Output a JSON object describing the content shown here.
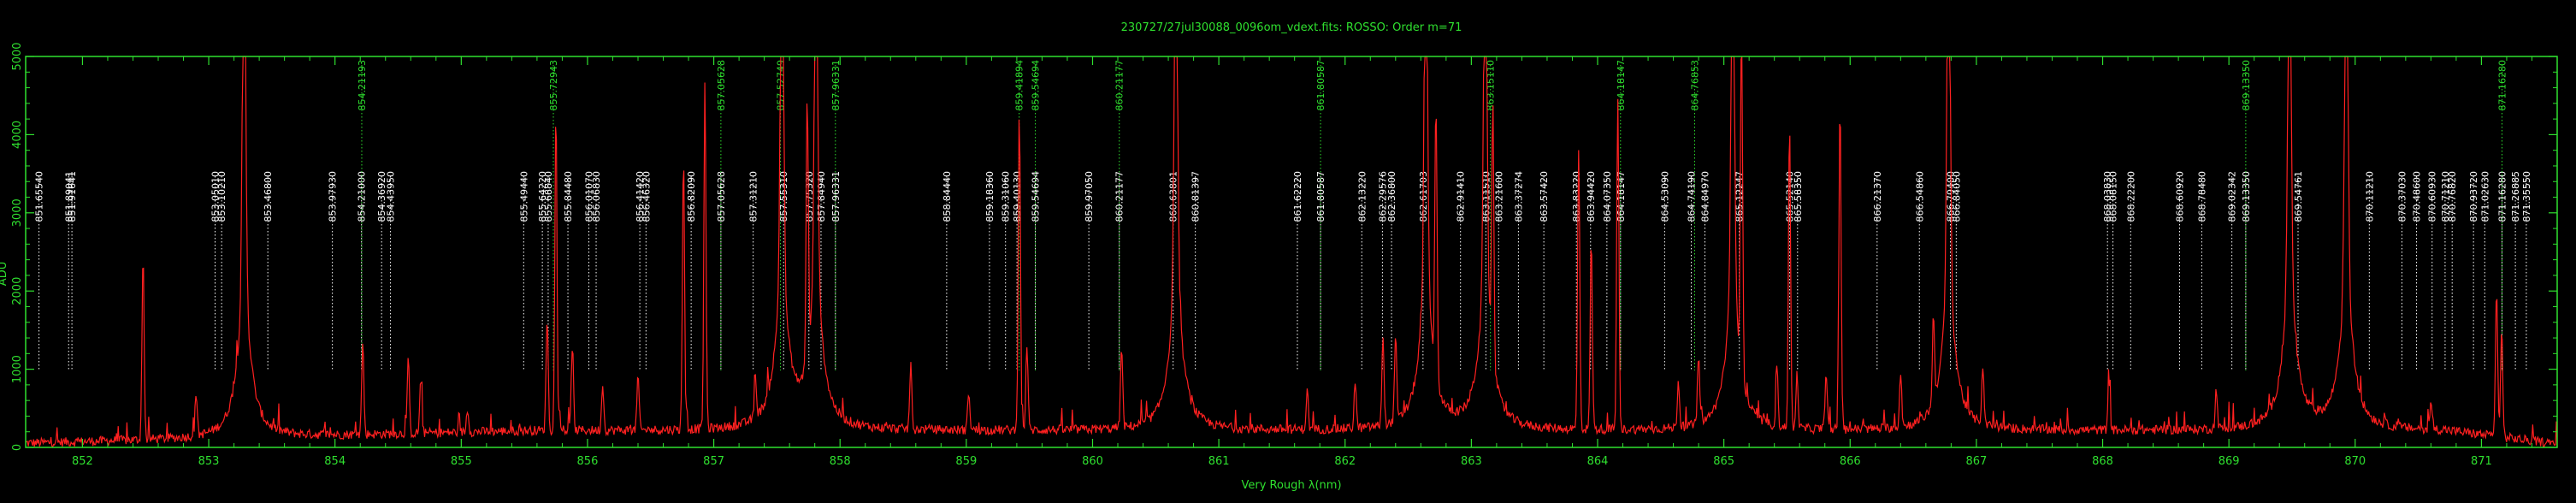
{
  "chart_data": {
    "type": "line",
    "title": "230727/27jul30088_0096om_vdext.fits: ROSSO: Order m=71",
    "xlabel": "Very Rough λ(nm)",
    "ylabel": "ADU",
    "xlim": [
      851.55,
      871.6
    ],
    "ylim": [
      0,
      5000
    ],
    "xticks": [
      852,
      853,
      854,
      855,
      856,
      857,
      858,
      859,
      860,
      861,
      862,
      863,
      864,
      865,
      866,
      867,
      868,
      869,
      870,
      871
    ],
    "yticks": [
      0,
      1000,
      2000,
      3000,
      4000,
      5000
    ],
    "grid": false,
    "colors": {
      "frame": "#2fe02f",
      "spectrum": "#ff2020",
      "line_marker_white": "#ffffff",
      "line_marker_green": "#2fe02f",
      "background": "#000000"
    },
    "continuum_level": 200,
    "peaks": [
      {
        "x": 852.48,
        "y": 2350
      },
      {
        "x": 852.9,
        "y": 550
      },
      {
        "x": 853.28,
        "y": 5000
      },
      {
        "x": 854.22,
        "y": 1200
      },
      {
        "x": 854.58,
        "y": 950
      },
      {
        "x": 854.68,
        "y": 700
      },
      {
        "x": 855.05,
        "y": 300
      },
      {
        "x": 855.68,
        "y": 1450
      },
      {
        "x": 855.75,
        "y": 3900
      },
      {
        "x": 855.88,
        "y": 1100
      },
      {
        "x": 856.12,
        "y": 600
      },
      {
        "x": 856.4,
        "y": 700
      },
      {
        "x": 856.76,
        "y": 3500
      },
      {
        "x": 856.93,
        "y": 4400
      },
      {
        "x": 857.33,
        "y": 500
      },
      {
        "x": 857.54,
        "y": 5000
      },
      {
        "x": 857.74,
        "y": 3300
      },
      {
        "x": 857.81,
        "y": 5000
      },
      {
        "x": 858.56,
        "y": 800
      },
      {
        "x": 859.02,
        "y": 500
      },
      {
        "x": 859.42,
        "y": 4150
      },
      {
        "x": 859.48,
        "y": 1100
      },
      {
        "x": 860.23,
        "y": 1050
      },
      {
        "x": 860.66,
        "y": 5000
      },
      {
        "x": 861.7,
        "y": 500
      },
      {
        "x": 862.08,
        "y": 600
      },
      {
        "x": 862.3,
        "y": 1150
      },
      {
        "x": 862.4,
        "y": 1100
      },
      {
        "x": 862.64,
        "y": 5000
      },
      {
        "x": 862.72,
        "y": 3500
      },
      {
        "x": 863.11,
        "y": 5000
      },
      {
        "x": 863.17,
        "y": 3200
      },
      {
        "x": 863.85,
        "y": 3600
      },
      {
        "x": 863.95,
        "y": 2450
      },
      {
        "x": 864.16,
        "y": 4200
      },
      {
        "x": 864.64,
        "y": 600
      },
      {
        "x": 864.8,
        "y": 900
      },
      {
        "x": 865.07,
        "y": 5000
      },
      {
        "x": 865.14,
        "y": 4500
      },
      {
        "x": 865.42,
        "y": 750
      },
      {
        "x": 865.52,
        "y": 3900
      },
      {
        "x": 865.58,
        "y": 700
      },
      {
        "x": 865.81,
        "y": 750
      },
      {
        "x": 865.92,
        "y": 4200
      },
      {
        "x": 866.4,
        "y": 700
      },
      {
        "x": 866.66,
        "y": 1100
      },
      {
        "x": 866.78,
        "y": 5000
      },
      {
        "x": 867.05,
        "y": 700
      },
      {
        "x": 868.05,
        "y": 600
      },
      {
        "x": 868.9,
        "y": 500
      },
      {
        "x": 869.48,
        "y": 5000
      },
      {
        "x": 869.93,
        "y": 5000
      },
      {
        "x": 870.6,
        "y": 350
      },
      {
        "x": 871.12,
        "y": 1900
      },
      {
        "x": 871.16,
        "y": 1400
      }
    ],
    "reference_lines": [
      {
        "label": "851.65540",
        "x": 851.6554,
        "color": "white"
      },
      {
        "label": "851.89041",
        "x": 851.89041,
        "color": "white"
      },
      {
        "label": "851.91641",
        "x": 851.91641,
        "color": "white"
      },
      {
        "label": "853.05010",
        "x": 853.0501,
        "color": "white"
      },
      {
        "label": "853.10210",
        "x": 853.1021,
        "color": "white"
      },
      {
        "label": "853.46800",
        "x": 853.468,
        "color": "white"
      },
      {
        "label": "853.97930",
        "x": 853.9793,
        "color": "white"
      },
      {
        "label": "854.21000",
        "x": 854.21,
        "color": "white"
      },
      {
        "label": "854.21193",
        "x": 854.21193,
        "color": "green"
      },
      {
        "label": "854.36920",
        "x": 854.3692,
        "color": "white"
      },
      {
        "label": "854.43950",
        "x": 854.4395,
        "color": "white"
      },
      {
        "label": "855.49440",
        "x": 855.4944,
        "color": "white"
      },
      {
        "label": "855.64220",
        "x": 855.6422,
        "color": "white"
      },
      {
        "label": "855.68840",
        "x": 855.6884,
        "color": "white"
      },
      {
        "label": "855.72943",
        "x": 855.72943,
        "color": "green"
      },
      {
        "label": "855.84480",
        "x": 855.8448,
        "color": "white"
      },
      {
        "label": "856.01070",
        "x": 856.0107,
        "color": "white"
      },
      {
        "label": "856.06830",
        "x": 856.0683,
        "color": "white"
      },
      {
        "label": "856.41420",
        "x": 856.4142,
        "color": "white"
      },
      {
        "label": "856.46320",
        "x": 856.4632,
        "color": "white"
      },
      {
        "label": "856.82090",
        "x": 856.8209,
        "color": "white"
      },
      {
        "label": "857.05628",
        "x": 857.05628,
        "color": "white"
      },
      {
        "label": "857.05628",
        "x": 857.05628,
        "color": "green"
      },
      {
        "label": "857.31210",
        "x": 857.3121,
        "color": "white"
      },
      {
        "label": "857.52749",
        "x": 857.52749,
        "color": "green"
      },
      {
        "label": "857.55310",
        "x": 857.5531,
        "color": "white"
      },
      {
        "label": "857.75320",
        "x": 857.7532,
        "color": "white"
      },
      {
        "label": "857.84940",
        "x": 857.8494,
        "color": "white"
      },
      {
        "label": "857.96331",
        "x": 857.96331,
        "color": "white"
      },
      {
        "label": "857.96331",
        "x": 857.96331,
        "color": "green"
      },
      {
        "label": "858.84440",
        "x": 858.8444,
        "color": "white"
      },
      {
        "label": "859.18360",
        "x": 859.1836,
        "color": "white"
      },
      {
        "label": "859.31060",
        "x": 859.3106,
        "color": "white"
      },
      {
        "label": "859.40130",
        "x": 859.4013,
        "color": "white"
      },
      {
        "label": "859.41894",
        "x": 859.41894,
        "color": "green"
      },
      {
        "label": "859.54694",
        "x": 859.54694,
        "color": "white"
      },
      {
        "label": "859.54694",
        "x": 859.54694,
        "color": "green"
      },
      {
        "label": "859.97050",
        "x": 859.9705,
        "color": "white"
      },
      {
        "label": "860.21177",
        "x": 860.21177,
        "color": "white"
      },
      {
        "label": "860.21177",
        "x": 860.21177,
        "color": "green"
      },
      {
        "label": "860.63801",
        "x": 860.63801,
        "color": "white"
      },
      {
        "label": "860.81397",
        "x": 860.81397,
        "color": "white"
      },
      {
        "label": "861.62220",
        "x": 861.6222,
        "color": "white"
      },
      {
        "label": "861.80587",
        "x": 861.80587,
        "color": "white"
      },
      {
        "label": "861.80587",
        "x": 861.80587,
        "color": "green"
      },
      {
        "label": "862.13220",
        "x": 862.1322,
        "color": "white"
      },
      {
        "label": "862.29576",
        "x": 862.29576,
        "color": "white"
      },
      {
        "label": "862.36800",
        "x": 862.368,
        "color": "white"
      },
      {
        "label": "862.61703",
        "x": 862.61703,
        "color": "white"
      },
      {
        "label": "862.91410",
        "x": 862.9141,
        "color": "white"
      },
      {
        "label": "863.11510",
        "x": 863.1151,
        "color": "white"
      },
      {
        "label": "863.15110",
        "x": 863.1511,
        "color": "green"
      },
      {
        "label": "863.21600",
        "x": 863.216,
        "color": "white"
      },
      {
        "label": "863.37274",
        "x": 863.37274,
        "color": "white"
      },
      {
        "label": "863.57420",
        "x": 863.5742,
        "color": "white"
      },
      {
        "label": "863.83220",
        "x": 863.8322,
        "color": "white"
      },
      {
        "label": "863.94420",
        "x": 863.9442,
        "color": "white"
      },
      {
        "label": "864.07350",
        "x": 864.0735,
        "color": "white"
      },
      {
        "label": "864.18147",
        "x": 864.18147,
        "color": "white"
      },
      {
        "label": "864.18147",
        "x": 864.18147,
        "color": "green"
      },
      {
        "label": "864.53090",
        "x": 864.5309,
        "color": "white"
      },
      {
        "label": "864.74190",
        "x": 864.7419,
        "color": "white"
      },
      {
        "label": "864.76853",
        "x": 864.76853,
        "color": "green"
      },
      {
        "label": "864.84970",
        "x": 864.8497,
        "color": "white"
      },
      {
        "label": "865.12247",
        "x": 865.12247,
        "color": "white"
      },
      {
        "label": "865.52140",
        "x": 865.5214,
        "color": "white"
      },
      {
        "label": "865.58350",
        "x": 865.5835,
        "color": "white"
      },
      {
        "label": "866.21370",
        "x": 866.2137,
        "color": "white"
      },
      {
        "label": "866.54860",
        "x": 866.5486,
        "color": "white"
      },
      {
        "label": "866.79400",
        "x": 866.794,
        "color": "white"
      },
      {
        "label": "866.84050",
        "x": 866.8405,
        "color": "white"
      },
      {
        "label": "868.03830",
        "x": 868.0383,
        "color": "white"
      },
      {
        "label": "868.08150",
        "x": 868.0815,
        "color": "white"
      },
      {
        "label": "868.22200",
        "x": 868.222,
        "color": "white"
      },
      {
        "label": "868.60920",
        "x": 868.6092,
        "color": "white"
      },
      {
        "label": "868.78480",
        "x": 868.7848,
        "color": "white"
      },
      {
        "label": "869.02342",
        "x": 869.02342,
        "color": "white"
      },
      {
        "label": "869.13350",
        "x": 869.1335,
        "color": "white"
      },
      {
        "label": "869.13350",
        "x": 869.1335,
        "color": "green"
      },
      {
        "label": "869.54761",
        "x": 869.54761,
        "color": "white"
      },
      {
        "label": "870.11210",
        "x": 870.1121,
        "color": "white"
      },
      {
        "label": "870.37030",
        "x": 870.3703,
        "color": "white"
      },
      {
        "label": "870.48600",
        "x": 870.486,
        "color": "white"
      },
      {
        "label": "870.60930",
        "x": 870.6093,
        "color": "white"
      },
      {
        "label": "870.71210",
        "x": 870.7121,
        "color": "white"
      },
      {
        "label": "870.76820",
        "x": 870.7682,
        "color": "white"
      },
      {
        "label": "870.93720",
        "x": 870.9372,
        "color": "white"
      },
      {
        "label": "871.02630",
        "x": 871.0263,
        "color": "white"
      },
      {
        "label": "871.16280",
        "x": 871.1628,
        "color": "white"
      },
      {
        "label": "871.16280",
        "x": 871.1628,
        "color": "green"
      },
      {
        "label": "871.26885",
        "x": 871.26885,
        "color": "white"
      },
      {
        "label": "871.35550",
        "x": 871.3555,
        "color": "white"
      }
    ]
  }
}
